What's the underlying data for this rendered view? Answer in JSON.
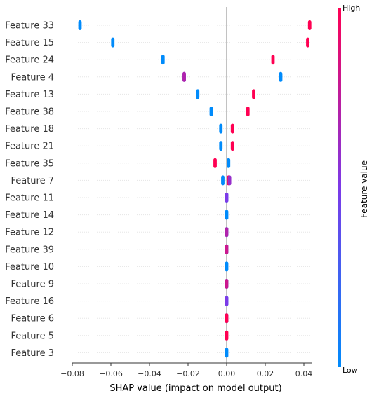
{
  "chart_data": {
    "type": "scatter",
    "title": "",
    "xlabel": "SHAP value (impact on model output)",
    "ylabel": "",
    "xlim": [
      -0.0815,
      0.0485
    ],
    "xticks": [
      -0.08,
      -0.06,
      -0.04,
      -0.02,
      0.0,
      0.02,
      0.04
    ],
    "xtick_labels": [
      "−0.08",
      "−0.06",
      "−0.04",
      "−0.02",
      "0.00",
      "0.02",
      "0.04"
    ],
    "grid": false,
    "colorbar": {
      "title": "Feature value",
      "high_label": "High",
      "low_label": "Low",
      "high_color": "#ff0052",
      "low_color": "#008bfb"
    },
    "features": [
      {
        "name": "Feature 33",
        "points": [
          [
            -0.076,
            0.0
          ],
          [
            0.043,
            1.0
          ]
        ]
      },
      {
        "name": "Feature 15",
        "points": [
          [
            -0.059,
            0.0
          ],
          [
            0.042,
            1.0
          ]
        ]
      },
      {
        "name": "Feature 24",
        "points": [
          [
            -0.033,
            0.0
          ],
          [
            0.024,
            1.0
          ]
        ]
      },
      {
        "name": "Feature 4",
        "points": [
          [
            -0.022,
            0.45
          ],
          [
            -0.022,
            0.7
          ],
          [
            0.028,
            0.0
          ]
        ]
      },
      {
        "name": "Feature 13",
        "points": [
          [
            -0.015,
            0.0
          ],
          [
            0.014,
            1.0
          ]
        ]
      },
      {
        "name": "Feature 38",
        "points": [
          [
            -0.008,
            0.0
          ],
          [
            0.011,
            1.0
          ]
        ]
      },
      {
        "name": "Feature 18",
        "points": [
          [
            -0.003,
            0.0
          ],
          [
            0.003,
            1.0
          ]
        ]
      },
      {
        "name": "Feature 21",
        "points": [
          [
            -0.003,
            0.0
          ],
          [
            0.003,
            1.0
          ]
        ]
      },
      {
        "name": "Feature 35",
        "points": [
          [
            -0.006,
            1.0
          ],
          [
            0.001,
            0.0
          ]
        ]
      },
      {
        "name": "Feature 7",
        "points": [
          [
            -0.002,
            0.0
          ],
          [
            0.001,
            1.0
          ],
          [
            0.0015,
            0.6
          ]
        ]
      },
      {
        "name": "Feature 11",
        "points": [
          [
            0.0,
            0.0
          ],
          [
            0.0,
            0.5
          ]
        ]
      },
      {
        "name": "Feature 14",
        "points": [
          [
            0.0,
            0.0
          ]
        ]
      },
      {
        "name": "Feature 12",
        "points": [
          [
            0.0,
            0.0
          ],
          [
            0.0,
            0.7
          ]
        ]
      },
      {
        "name": "Feature 39",
        "points": [
          [
            0.0,
            0.0
          ],
          [
            0.0,
            0.8
          ]
        ]
      },
      {
        "name": "Feature 10",
        "points": [
          [
            0.0,
            0.0
          ]
        ]
      },
      {
        "name": "Feature 9",
        "points": [
          [
            0.0,
            0.0
          ],
          [
            0.0,
            0.8
          ]
        ]
      },
      {
        "name": "Feature 16",
        "points": [
          [
            0.0,
            0.0
          ],
          [
            0.0,
            0.5
          ]
        ]
      },
      {
        "name": "Feature 6",
        "points": [
          [
            0.0,
            0.0
          ],
          [
            0.0,
            1.0
          ]
        ]
      },
      {
        "name": "Feature 5",
        "points": [
          [
            0.0,
            1.0
          ]
        ]
      },
      {
        "name": "Feature 3",
        "points": [
          [
            0.0,
            0.0
          ]
        ]
      }
    ]
  }
}
